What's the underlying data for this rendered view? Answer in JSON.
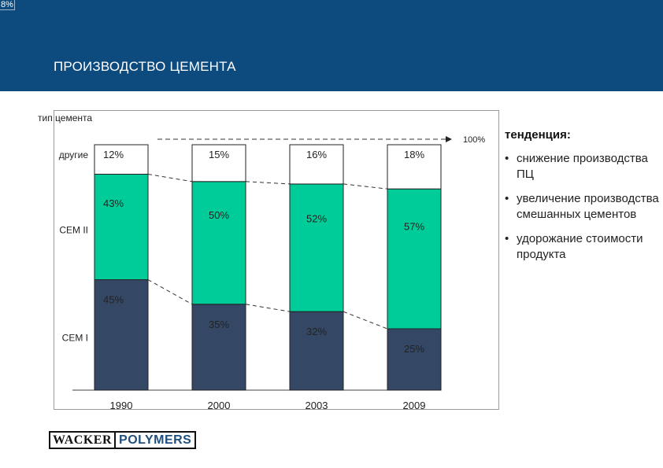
{
  "header": {
    "corner_label": "8%",
    "title": "ПРОИЗВОДСТВО ЦЕМЕНТА"
  },
  "colors": {
    "header_bg": "#0d4a7d",
    "cem_i": "#344866",
    "cem_ii": "#00cc99",
    "other": "#ffffff"
  },
  "chart_data": {
    "type": "bar",
    "stacked": true,
    "ylabel": "тип цемента",
    "reference_label": "100%",
    "categories": [
      "1990",
      "2000",
      "2003",
      "2009"
    ],
    "series": [
      {
        "name": "CEM I",
        "values": [
          45,
          35,
          32,
          25
        ],
        "labels": [
          "45%",
          "35%",
          "32%",
          "25%"
        ],
        "color": "#344866"
      },
      {
        "name": "CEM II",
        "values": [
          43,
          50,
          52,
          57
        ],
        "labels": [
          "43%",
          "50%",
          "52%",
          "57%"
        ],
        "color": "#00cc99"
      },
      {
        "name": "другие",
        "values": [
          12,
          15,
          16,
          18
        ],
        "labels": [
          "12%",
          "15%",
          "16%",
          "18%"
        ],
        "color": "#ffffff"
      }
    ],
    "ylim": [
      0,
      100
    ],
    "grid": false,
    "connector_lines": "dashed"
  },
  "trend": {
    "title": "тенденция:",
    "bullet": "•",
    "items": [
      {
        "text": "снижение производства ПЦ"
      },
      {
        "text": "увеличение производства смешанных цементов"
      },
      {
        "text": " удорожание стоимости продукта"
      }
    ]
  },
  "logo": {
    "part1": "WACKER",
    "part2": "POLYMERS"
  }
}
